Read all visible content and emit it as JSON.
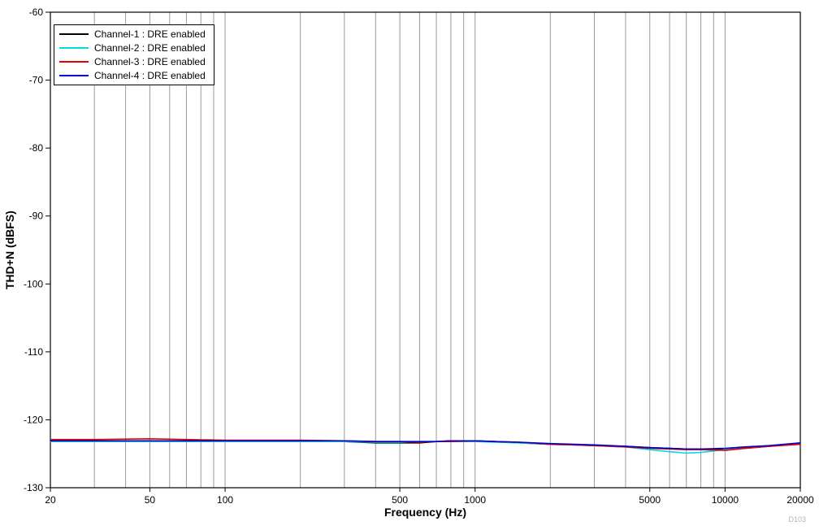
{
  "figure": {
    "watermark": "D103"
  },
  "chart_data": {
    "type": "line",
    "title": "",
    "xlabel": "Frequency (Hz)",
    "ylabel": "THD+N (dBFS)",
    "x_scale": "log",
    "xlim": [
      20,
      20000
    ],
    "ylim": [
      -130,
      -60
    ],
    "grid": "vertical-only",
    "grid_color": "#9a9a9a",
    "axis_color": "#000000",
    "legend_position": "top-left",
    "x_ticks_labeled": [
      20,
      50,
      100,
      500,
      1000,
      5000,
      10000,
      20000
    ],
    "x_gridlines": [
      20,
      30,
      40,
      50,
      60,
      70,
      80,
      90,
      100,
      200,
      300,
      400,
      500,
      600,
      700,
      800,
      900,
      1000,
      2000,
      3000,
      4000,
      5000,
      6000,
      7000,
      8000,
      9000,
      10000,
      20000
    ],
    "y_ticks": [
      -60,
      -70,
      -80,
      -90,
      -100,
      -110,
      -120,
      -130
    ],
    "x": [
      20,
      30,
      50,
      70,
      100,
      150,
      200,
      300,
      400,
      500,
      600,
      700,
      800,
      1000,
      1200,
      1500,
      2000,
      2500,
      3000,
      4000,
      5000,
      6000,
      7000,
      8000,
      10000,
      12000,
      15000,
      20000
    ],
    "series": [
      {
        "name": "Channel-1 : DRE enabled",
        "color": "#000000",
        "values": [
          -123.1,
          -123.1,
          -123.1,
          -123.1,
          -123.1,
          -123.1,
          -123.1,
          -123.2,
          -123.4,
          -123.4,
          -123.4,
          -123.2,
          -123.1,
          -123.1,
          -123.2,
          -123.4,
          -123.6,
          -123.7,
          -123.8,
          -123.9,
          -124.1,
          -124.2,
          -124.3,
          -124.3,
          -124.3,
          -124.1,
          -123.9,
          -123.5
        ]
      },
      {
        "name": "Channel-2 : DRE enabled",
        "color": "#00dddd",
        "values": [
          -123.2,
          -123.2,
          -123.2,
          -123.2,
          -123.2,
          -123.2,
          -123.2,
          -123.2,
          -123.3,
          -123.3,
          -123.2,
          -123.2,
          -123.2,
          -123.2,
          -123.3,
          -123.4,
          -123.6,
          -123.7,
          -123.8,
          -124.0,
          -124.4,
          -124.7,
          -124.9,
          -124.8,
          -124.4,
          -124.2,
          -123.9,
          -123.5
        ]
      },
      {
        "name": "Channel-3 : DRE enabled",
        "color": "#e60000",
        "values": [
          -122.9,
          -122.9,
          -122.8,
          -122.9,
          -123.0,
          -123.0,
          -123.0,
          -123.1,
          -123.2,
          -123.2,
          -123.3,
          -123.2,
          -123.2,
          -123.1,
          -123.2,
          -123.3,
          -123.6,
          -123.7,
          -123.8,
          -124.0,
          -124.2,
          -124.3,
          -124.4,
          -124.4,
          -124.5,
          -124.2,
          -123.9,
          -123.6
        ]
      },
      {
        "name": "Channel-4 : DRE enabled",
        "color": "#0000cc",
        "values": [
          -123.1,
          -123.1,
          -123.1,
          -123.1,
          -123.1,
          -123.1,
          -123.1,
          -123.1,
          -123.2,
          -123.2,
          -123.2,
          -123.2,
          -123.1,
          -123.1,
          -123.2,
          -123.3,
          -123.5,
          -123.6,
          -123.7,
          -123.9,
          -124.1,
          -124.2,
          -124.3,
          -124.3,
          -124.2,
          -124.0,
          -123.8,
          -123.4
        ]
      }
    ]
  }
}
